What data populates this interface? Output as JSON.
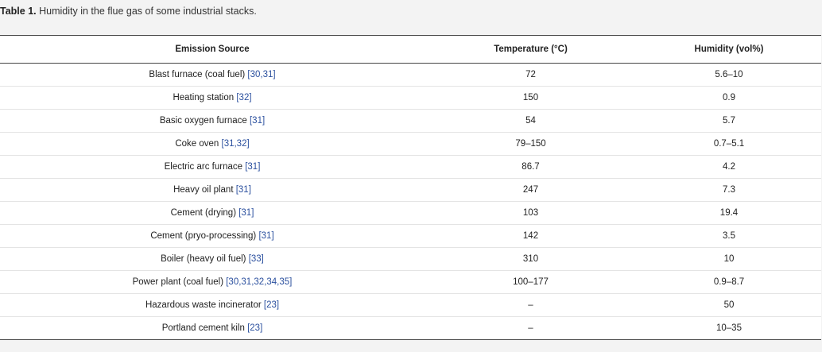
{
  "caption": {
    "label": "Table 1.",
    "text": " Humidity in the flue gas of some industrial stacks."
  },
  "table": {
    "headers": [
      "Emission Source",
      "Temperature (°C)",
      "Humidity (vol%)"
    ],
    "rows": [
      {
        "source": "Blast furnace (coal fuel) ",
        "refs": "[30,31]",
        "temperature": "72",
        "humidity": "5.6–10"
      },
      {
        "source": "Heating station ",
        "refs": "[32]",
        "temperature": "150",
        "humidity": "0.9"
      },
      {
        "source": "Basic oxygen furnace ",
        "refs": "[31]",
        "temperature": "54",
        "humidity": "5.7"
      },
      {
        "source": "Coke oven ",
        "refs": "[31,32]",
        "temperature": "79–150",
        "humidity": "0.7–5.1"
      },
      {
        "source": "Electric arc furnace ",
        "refs": "[31]",
        "temperature": "86.7",
        "humidity": "4.2"
      },
      {
        "source": "Heavy oil plant ",
        "refs": "[31]",
        "temperature": "247",
        "humidity": "7.3"
      },
      {
        "source": "Cement (drying) ",
        "refs": "[31]",
        "temperature": "103",
        "humidity": "19.4"
      },
      {
        "source": "Cement (pryo-processing) ",
        "refs": "[31]",
        "temperature": "142",
        "humidity": "3.5"
      },
      {
        "source": "Boiler (heavy oil fuel) ",
        "refs": "[33]",
        "temperature": "310",
        "humidity": "10"
      },
      {
        "source": "Power plant (coal fuel) ",
        "refs": "[30,31,32,34,35]",
        "temperature": "100–177",
        "humidity": "0.9–8.7"
      },
      {
        "source": "Hazardous waste incinerator ",
        "refs": "[23]",
        "temperature": "–",
        "humidity": "50"
      },
      {
        "source": "Portland cement kiln ",
        "refs": "[23]",
        "temperature": "–",
        "humidity": "10–35"
      }
    ]
  }
}
